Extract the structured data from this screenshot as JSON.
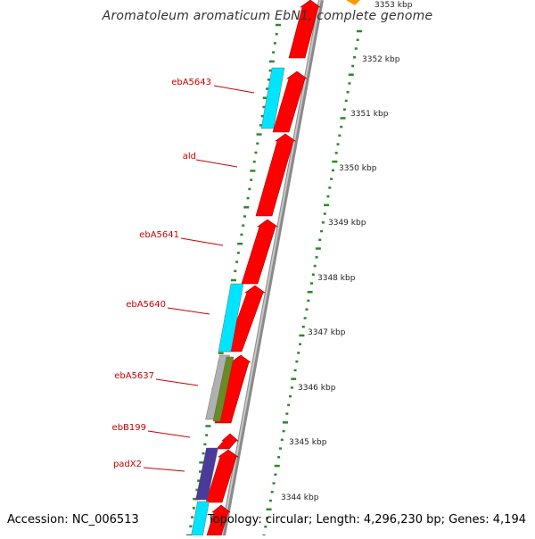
{
  "title": "Aromatoleum aromaticum EbN1, complete genome",
  "footer": {
    "accession": "Accession: NC_006513",
    "summary": "Topology: circular; Length: 4,296,230 bp; Genes: 4,194"
  },
  "colors": {
    "forward_cds": "#ff0000",
    "reverse_cds": "#00e5ff",
    "backbone": "#8a8a8a",
    "tick": "#2a8a2a",
    "label": "#cc0000",
    "orange_feature": "#ff9900"
  },
  "scale_labels": [
    "3353 kbp",
    "3352 kbp",
    "3351 kbp",
    "3350 kbp",
    "3349 kbp",
    "3348 kbp",
    "3347 kbp",
    "3346 kbp",
    "3345 kbp",
    "3344 kbp"
  ],
  "gene_labels": [
    "ebA5643",
    "ald",
    "ebA5641",
    "ebA5640",
    "ebA5637",
    "ebB199",
    "padX2"
  ]
}
